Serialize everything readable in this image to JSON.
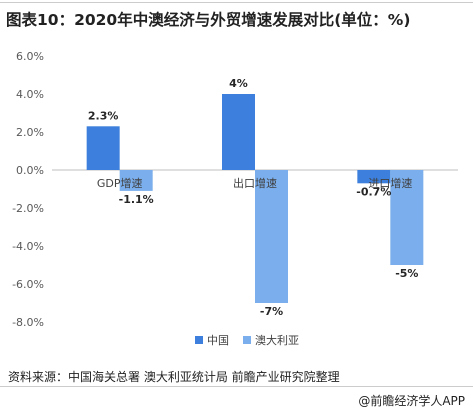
{
  "header": {
    "title": "图表10：2020年中澳经济与外贸增速发展对比(单位：%)"
  },
  "chart_data": {
    "type": "bar",
    "categories": [
      "GDP增速",
      "出口增速",
      "进口增速"
    ],
    "series": [
      {
        "name": "中国",
        "values": [
          2.3,
          4,
          -0.7
        ],
        "labels": [
          "2.3%",
          "4%",
          "-0.7%"
        ],
        "color": "#3d7fdc"
      },
      {
        "name": "澳大利亚",
        "values": [
          -1.1,
          -7,
          -5
        ],
        "labels": [
          "-1.1%",
          "-7%",
          "-5%"
        ],
        "color": "#7aaeec"
      }
    ],
    "ylim": [
      -8,
      6
    ],
    "yticks": [
      6,
      4,
      2,
      0,
      -2,
      -4,
      -6,
      -8
    ],
    "ytick_labels": [
      "6.0%",
      "4.0%",
      "2.0%",
      "0.0%",
      "-2.0%",
      "-4.0%",
      "-6.0%",
      "-8.0%"
    ],
    "legend_position": "bottom",
    "grid": false
  },
  "footer": {
    "source": "资料来源：中国海关总署 澳大利亚统计局 前瞻产业研究院整理",
    "brand": "@前瞻经济学人APP"
  }
}
